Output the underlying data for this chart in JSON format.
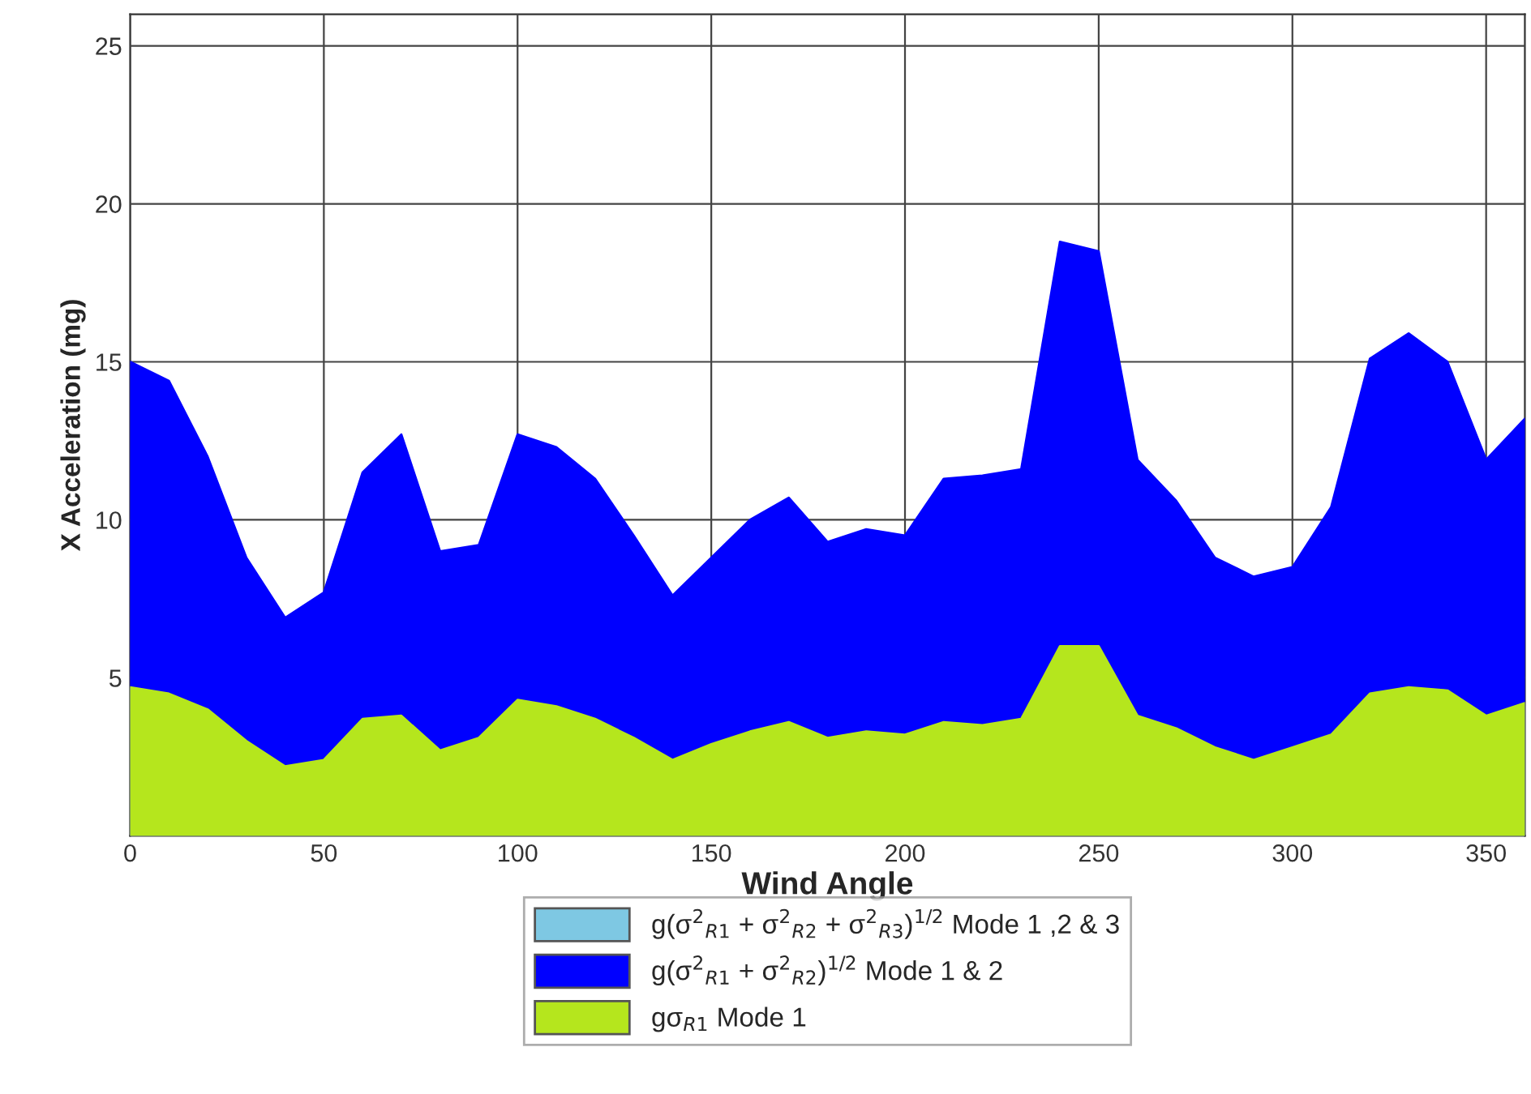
{
  "chart_data": {
    "type": "area",
    "xlabel": "Wind Angle",
    "ylabel": "X Acceleration (mg)",
    "x": [
      0,
      10,
      20,
      30,
      40,
      50,
      60,
      70,
      80,
      90,
      100,
      110,
      120,
      130,
      140,
      150,
      160,
      170,
      180,
      190,
      200,
      210,
      220,
      230,
      240,
      250,
      260,
      270,
      280,
      290,
      300,
      310,
      320,
      330,
      340,
      350,
      360
    ],
    "series": [
      {
        "name": "g(σ$^{2}$$_{R1}$ + σ$^{2}$$_{R2}$ + σ$^{2}$$_{R3}$)$^{1/2}$ Mode 1 ,2 & 3",
        "color": "#7ec8e3",
        "values": [
          null,
          null,
          null,
          null,
          null,
          null,
          null,
          null,
          null,
          null,
          null,
          null,
          null,
          null,
          null,
          null,
          null,
          null,
          null,
          null,
          null,
          null,
          null,
          null,
          null,
          null,
          null,
          null,
          null,
          null,
          null,
          null,
          null,
          null,
          null,
          null,
          null
        ]
      },
      {
        "name": "g(σ$^{2}$$_{R1}$ + σ$^{2}$$_{R2}$)$^{1/2}$ Mode 1 & 2",
        "color": "#0000ff",
        "values": [
          15.0,
          14.4,
          12.0,
          8.8,
          6.9,
          7.7,
          11.5,
          12.7,
          9.0,
          9.2,
          12.7,
          12.3,
          11.3,
          9.5,
          7.6,
          8.8,
          10.0,
          10.7,
          9.3,
          9.7,
          9.5,
          11.3,
          11.4,
          11.6,
          18.8,
          18.5,
          11.9,
          10.6,
          8.8,
          8.2,
          8.5,
          10.4,
          15.1,
          15.9,
          15.0,
          11.9,
          13.2
        ]
      },
      {
        "name": "gσ$_{R1}$ Mode 1",
        "color": "#b5e61d",
        "values": [
          4.7,
          4.5,
          4.0,
          3.0,
          2.2,
          2.4,
          3.7,
          3.8,
          2.7,
          3.1,
          4.3,
          4.1,
          3.7,
          3.1,
          2.4,
          2.9,
          3.3,
          3.6,
          3.1,
          3.3,
          3.2,
          3.6,
          3.5,
          3.7,
          6.0,
          6.0,
          3.8,
          3.4,
          2.8,
          2.4,
          2.8,
          3.2,
          4.5,
          4.7,
          4.6,
          3.8,
          4.2
        ]
      }
    ],
    "xlim": [
      0,
      360
    ],
    "xticks": [
      0,
      50,
      100,
      150,
      200,
      250,
      300,
      350
    ],
    "ylim": [
      0,
      26
    ],
    "yticks": [
      5,
      10,
      15,
      20,
      25
    ],
    "grid": true,
    "legend": "bottom"
  }
}
